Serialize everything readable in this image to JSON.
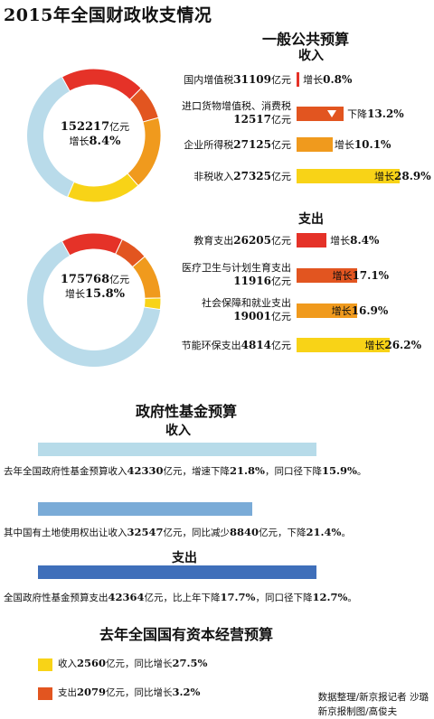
{
  "title": "2015年全国财政收支情况",
  "general_budget": {
    "heading": "一般公共预算",
    "income_heading": "收入",
    "expense_heading": "支出",
    "income_center": {
      "value": "152217",
      "unit": "亿元",
      "change_label": "增长",
      "change": "8.4%"
    },
    "expense_center": {
      "value": "175768",
      "unit": "亿元",
      "change_label": "增长",
      "change": "15.8%"
    }
  },
  "fund_budget": {
    "heading": "政府性基金预算",
    "income_heading": "收入",
    "expense_heading": "支出",
    "line1": {
      "a": "去年全国政府性基金预算收入",
      "v1": "42330",
      "b": "亿元，增速下降",
      "v2": "21.8%",
      "c": "，同口径下降",
      "v3": "15.9%",
      "d": "。"
    },
    "line2": {
      "a": "其中国有土地使用权出让收入",
      "v1": "32547",
      "b": "亿元，同比减少",
      "v2": "8840",
      "c": "亿元，下降",
      "v3": "21.4%",
      "d": "。"
    },
    "line3": {
      "a": "全国政府性基金预算支出",
      "v1": "42364",
      "b": "亿元，比上年下降",
      "v2": "17.7%",
      "c": "，同口径下降",
      "v3": "12.7%",
      "d": "。"
    }
  },
  "soe_budget": {
    "heading": "去年全国国有资本经营预算",
    "income": {
      "a": "收入",
      "v": "2560",
      "b": "亿元，同比增长",
      "pct": "27.5%"
    },
    "expense": {
      "a": "支出",
      "v": "2079",
      "b": "亿元，同比增长",
      "pct": "3.2%"
    }
  },
  "credit": {
    "line1": "数据整理/新京报记者  沙璐",
    "line2": "新京报制图/高俊夫"
  },
  "chart_data": [
    {
      "type": "bar",
      "name_text": "一般公共预算收入",
      "total": 152217,
      "categories": [
        "国内增值税",
        "进口货物增值税、消费税",
        "企业所得税",
        "非税收入"
      ],
      "values": [
        31109,
        12517,
        27125,
        27325
      ],
      "changes": [
        {
          "label": "增长",
          "pct": "0.8%",
          "dir": "up"
        },
        {
          "label": "下降",
          "pct": "13.2%",
          "dir": "down"
        },
        {
          "label": "增长",
          "pct": "10.1%",
          "dir": "up"
        },
        {
          "label": "增长",
          "pct": "28.9%",
          "dir": "up"
        }
      ],
      "change_values": [
        0.8,
        -13.2,
        10.1,
        28.9
      ],
      "unit": "亿元",
      "colors": [
        "#e53228",
        "#e25520",
        "#f09a1d",
        "#f8d317"
      ]
    },
    {
      "type": "bar",
      "name_text": "一般公共预算支出",
      "total": 175768,
      "categories": [
        "教育支出",
        "医疗卫生与计划生育支出",
        "社会保障和就业支出",
        "节能环保支出"
      ],
      "values": [
        26205,
        11916,
        19001,
        4814
      ],
      "changes": [
        {
          "label": "增长",
          "pct": "8.4%",
          "dir": "up"
        },
        {
          "label": "增长",
          "pct": "17.1%",
          "dir": "up"
        },
        {
          "label": "增长",
          "pct": "16.9%",
          "dir": "up"
        },
        {
          "label": "增长",
          "pct": "26.2%",
          "dir": "up"
        }
      ],
      "change_values": [
        8.4,
        17.1,
        16.9,
        26.2
      ],
      "unit": "亿元",
      "colors": [
        "#e53228",
        "#e25520",
        "#f09a1d",
        "#f8d317"
      ]
    },
    {
      "type": "bar",
      "name_text": "政府性基金预算",
      "categories": [
        "收入",
        "国有土地使用权出让收入",
        "支出"
      ],
      "values": [
        42330,
        32547,
        42364
      ],
      "unit": "亿元",
      "colors": [
        "#b7dbe9",
        "#7aabd7",
        "#3f6fba"
      ]
    },
    {
      "type": "bar",
      "name_text": "去年全国国有资本经营预算",
      "categories": [
        "收入",
        "支出"
      ],
      "values": [
        2560,
        2079
      ],
      "unit": "亿元",
      "colors": [
        "#f8d317",
        "#e25520"
      ]
    }
  ],
  "colors": {
    "ring_base": "#b9dbea",
    "red": "#e53228",
    "orange_red": "#e25520",
    "orange": "#f09a1d",
    "yellow": "#f8d317"
  }
}
